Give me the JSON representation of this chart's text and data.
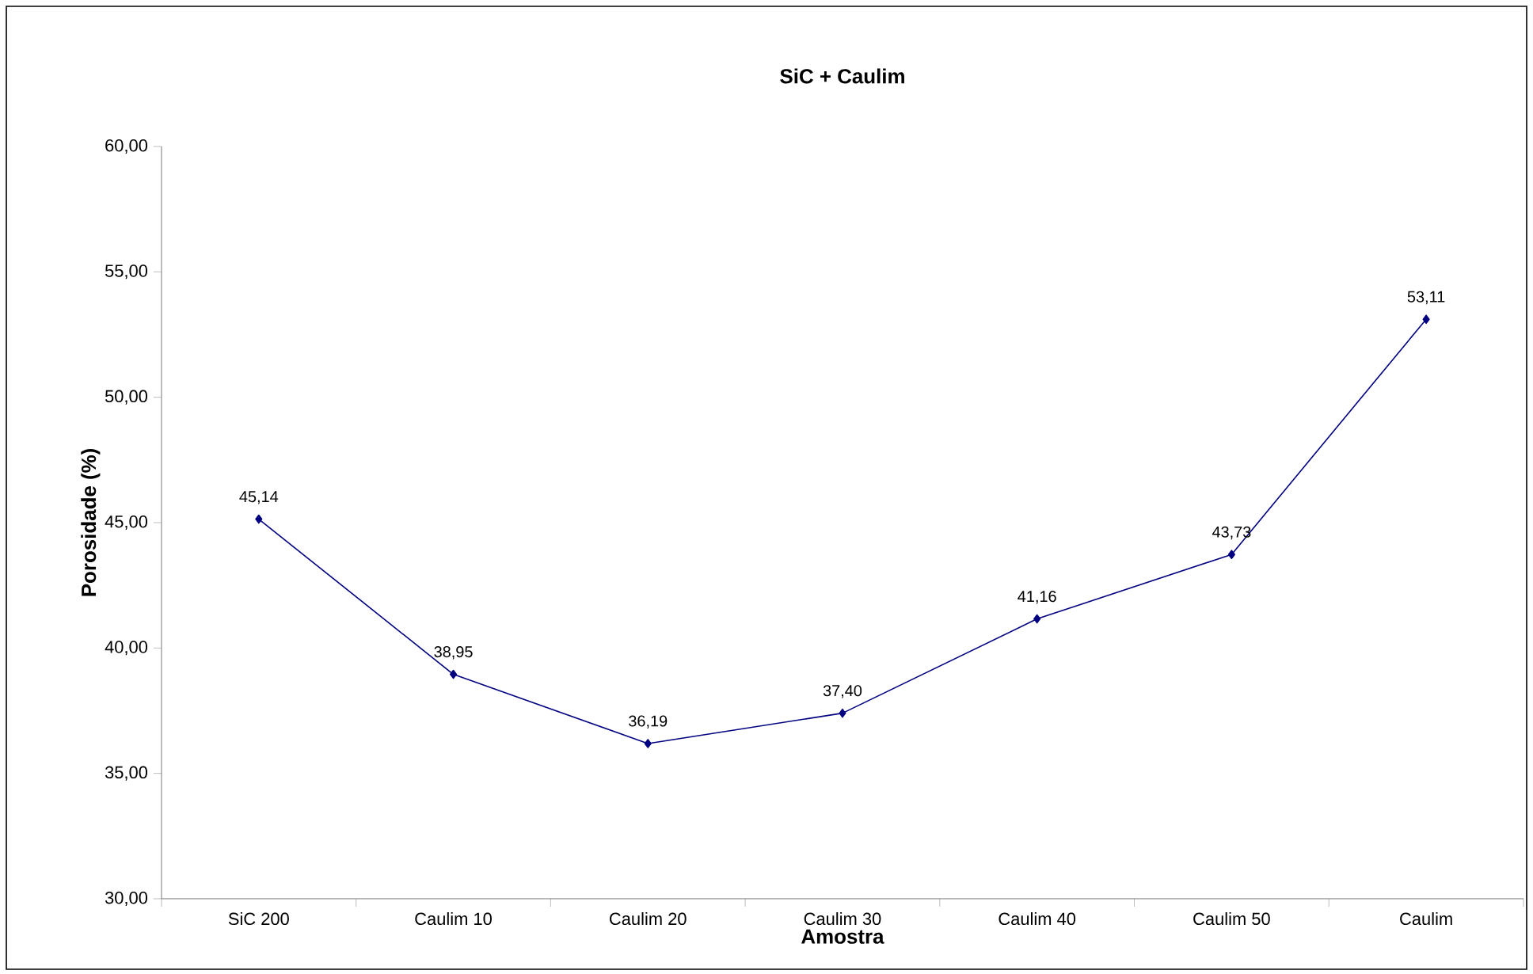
{
  "chart_data": {
    "type": "line",
    "title": "SiC + Caulim",
    "xlabel": "Amostra",
    "ylabel": "Porosidade (%)",
    "categories": [
      "SiC 200",
      "Caulim 10",
      "Caulim 20",
      "Caulim 30",
      "Caulim 40",
      "Caulim 50",
      "Caulim"
    ],
    "series": [
      {
        "color": "#000080",
        "values": [
          45.14,
          38.95,
          36.19,
          37.4,
          41.16,
          43.73,
          53.11
        ],
        "value_labels": [
          "45,14",
          "38,95",
          "36,19",
          "37,40",
          "41,16",
          "43,73",
          "53,11"
        ]
      }
    ],
    "ylim": [
      30,
      60
    ],
    "yticks": [
      {
        "value": 30,
        "label": "30,00"
      },
      {
        "value": 35,
        "label": "35,00"
      },
      {
        "value": 40,
        "label": "40,00"
      },
      {
        "value": 45,
        "label": "45,00"
      },
      {
        "value": 50,
        "label": "50,00"
      },
      {
        "value": 55,
        "label": "55,00"
      },
      {
        "value": 60,
        "label": "60,00"
      }
    ],
    "grid": false,
    "marker": "diamond",
    "line_style": "solid"
  }
}
